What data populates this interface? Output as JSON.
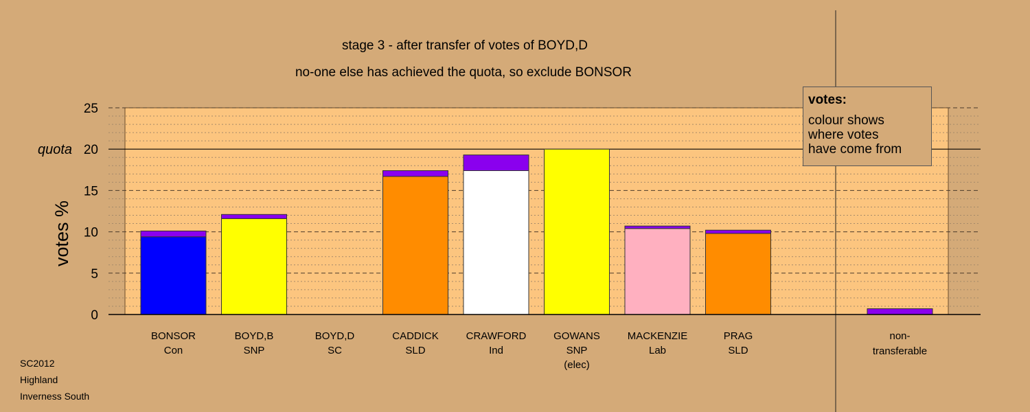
{
  "title_line1": "stage 3 - after transfer of votes of BOYD,D",
  "title_line2": "no-one else has achieved the quota, so exclude BONSOR",
  "legend": {
    "title": "votes:",
    "lines": [
      "colour shows",
      "where votes",
      "have come from"
    ]
  },
  "footer": {
    "line1": "SC2012",
    "line2": "Highland",
    "line3": "Inverness South"
  },
  "chart_data": {
    "type": "bar",
    "stacked": true,
    "ylabel": "votes %",
    "ylim": [
      0,
      25
    ],
    "yticks": [
      0,
      5,
      10,
      15,
      20,
      25
    ],
    "quota": 20,
    "quota_label": "quota",
    "grid": "dashed",
    "legend_position": "top-right",
    "categories": [
      {
        "name": "BONSOR",
        "party": "Con",
        "extra": "",
        "base_color": "#0000ff",
        "base": 9.4,
        "transfer": 0.7
      },
      {
        "name": "BOYD,B",
        "party": "SNP",
        "extra": "",
        "base_color": "#ffff00",
        "base": 11.6,
        "transfer": 0.5
      },
      {
        "name": "BOYD,D",
        "party": "SC",
        "extra": "",
        "base_color": "#ff8c00",
        "base": 0,
        "transfer": 0
      },
      {
        "name": "CADDICK",
        "party": "SLD",
        "extra": "",
        "base_color": "#ff8c00",
        "base": 16.7,
        "transfer": 0.7
      },
      {
        "name": "CRAWFORD",
        "party": "Ind",
        "extra": "",
        "base_color": "#ffffff",
        "base": 17.4,
        "transfer": 1.9
      },
      {
        "name": "GOWANS",
        "party": "SNP",
        "extra": "(elec)",
        "base_color": "#ffff00",
        "base": 20.0,
        "transfer": 0
      },
      {
        "name": "MACKENZIE",
        "party": "Lab",
        "extra": "",
        "base_color": "#ffb0c0",
        "base": 10.4,
        "transfer": 0.3
      },
      {
        "name": "PRAG",
        "party": "SLD",
        "extra": "",
        "base_color": "#ff8c00",
        "base": 9.8,
        "transfer": 0.4
      }
    ],
    "non_transferable": {
      "label_line1": "non-",
      "label_line2": "transferable",
      "value": 0.7
    },
    "transfer_color": "#8a00ee",
    "plot_background": "#fcc57f"
  }
}
